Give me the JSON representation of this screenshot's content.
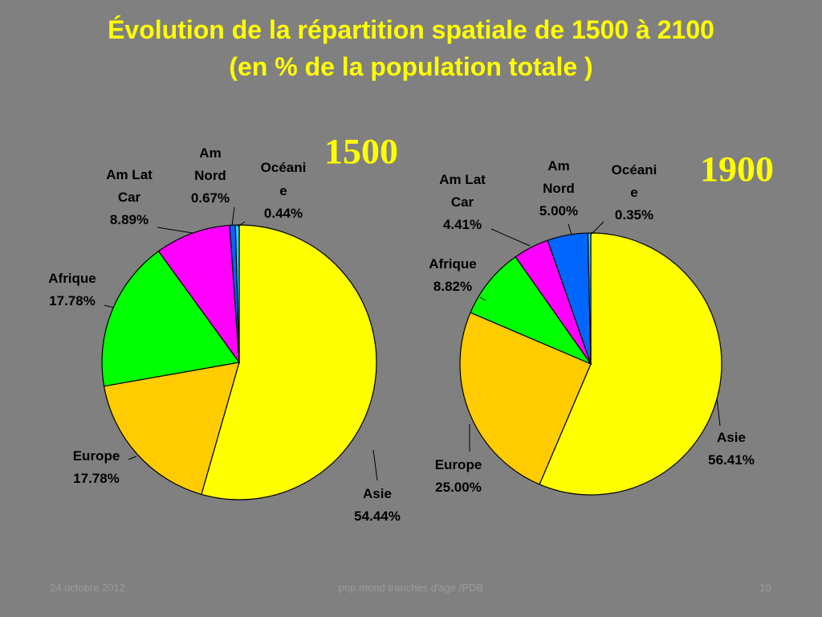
{
  "slide": {
    "title_line1": "Évolution de la répartition spatiale de 1500 à 2100",
    "title_line2": "(en % de la population totale )",
    "footer_date": "24 octobre 2012",
    "footer_center": "pop mond tranches d'age /PDB",
    "footer_page": "10"
  },
  "colors": {
    "background": "#808080",
    "title": "#ffff00",
    "year_label": "#ffff00"
  },
  "chart_data": [
    {
      "type": "pie",
      "title": "1500",
      "slices": [
        {
          "label": "Asie",
          "value": 54.44,
          "value_label": "54.44%",
          "color": "#ffff00"
        },
        {
          "label": "Europe",
          "value": 17.78,
          "value_label": "17.78%",
          "color": "#ffcc00"
        },
        {
          "label": "Afrique",
          "value": 17.78,
          "value_label": "17.78%",
          "color": "#00ff00"
        },
        {
          "label": "Am Lat Car",
          "value": 8.89,
          "value_label": "8.89%",
          "color": "#ff00ff"
        },
        {
          "label": "Am Nord",
          "value": 0.67,
          "value_label": "0.67%",
          "color": "#0066ff"
        },
        {
          "label": "Océanie",
          "value": 0.44,
          "value_label": "0.44%",
          "color": "#33ccff"
        }
      ]
    },
    {
      "type": "pie",
      "title": "1900",
      "slices": [
        {
          "label": "Asie",
          "value": 56.41,
          "value_label": "56.41%",
          "color": "#ffff00"
        },
        {
          "label": "Europe",
          "value": 25.0,
          "value_label": "25.00%",
          "color": "#ffcc00"
        },
        {
          "label": "Afrique",
          "value": 8.82,
          "value_label": "8.82%",
          "color": "#00ff00"
        },
        {
          "label": "Am Lat Car",
          "value": 4.41,
          "value_label": "4.41%",
          "color": "#ff00ff"
        },
        {
          "label": "Am Nord",
          "value": 5.0,
          "value_label": "5.00%",
          "color": "#0066ff"
        },
        {
          "label": "Océanie",
          "value": 0.35,
          "value_label": "0.35%",
          "color": "#33ccff"
        }
      ]
    }
  ]
}
